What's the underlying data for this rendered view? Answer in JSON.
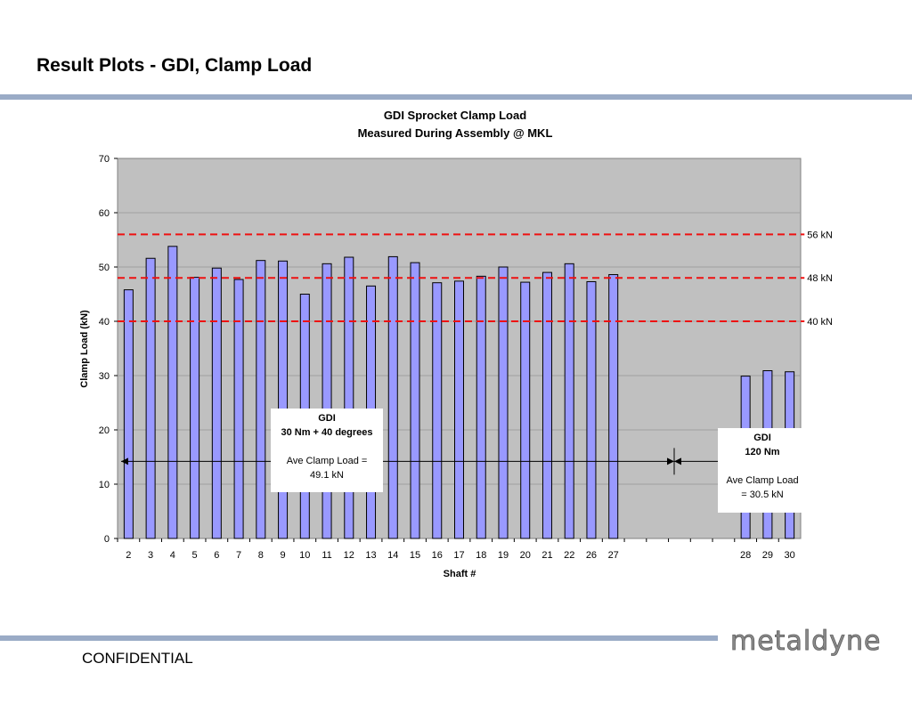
{
  "slide": {
    "title": "Result Plots - GDI, Clamp Load",
    "footer": "CONFIDENTIAL",
    "logo_text": "metaldyne",
    "rule_color": "#9aabc6"
  },
  "chart_data": {
    "type": "bar",
    "title": [
      "GDI Sprocket Clamp Load",
      "Measured During Assembly @ MKL"
    ],
    "xlabel": "Shaft #",
    "ylabel": "Clamp Load (kN)",
    "ylim": [
      0,
      70
    ],
    "yticks": [
      0,
      10,
      20,
      30,
      40,
      50,
      60,
      70
    ],
    "grid": true,
    "bar_color": "#9999ff",
    "plot_bg": "#c0c0c0",
    "categories": [
      "2",
      "3",
      "4",
      "5",
      "6",
      "7",
      "8",
      "9",
      "10",
      "11",
      "12",
      "13",
      "14",
      "15",
      "16",
      "17",
      "18",
      "19",
      "20",
      "21",
      "22",
      "26",
      "27",
      "",
      "",
      "",
      "",
      "",
      "28",
      "29",
      "30"
    ],
    "values": [
      45.8,
      51.6,
      53.8,
      48.1,
      49.8,
      47.7,
      51.2,
      51.1,
      45.0,
      50.6,
      51.8,
      46.5,
      51.9,
      50.8,
      47.1,
      47.4,
      48.3,
      50.0,
      47.2,
      49.0,
      50.6,
      47.3,
      48.6,
      null,
      null,
      null,
      null,
      null,
      29.9,
      30.9,
      30.7
    ],
    "reference_lines": [
      {
        "value": 56,
        "label": "56 kN",
        "color": "#ee1111"
      },
      {
        "value": 48,
        "label": "48 kN",
        "color": "#ee1111"
      },
      {
        "value": 40,
        "label": "40 kN",
        "color": "#ee1111"
      }
    ],
    "annotations": [
      {
        "lines": [
          "GDI",
          "30 Nm + 40 degrees",
          "",
          "Ave Clamp Load =",
          "49.1 kN"
        ],
        "bold_lines": 2
      },
      {
        "lines": [
          "GDI",
          "120 Nm",
          "",
          "Ave Clamp Load",
          "= 30.5 kN"
        ],
        "bold_lines": 2
      }
    ],
    "span_level": 14.2
  }
}
